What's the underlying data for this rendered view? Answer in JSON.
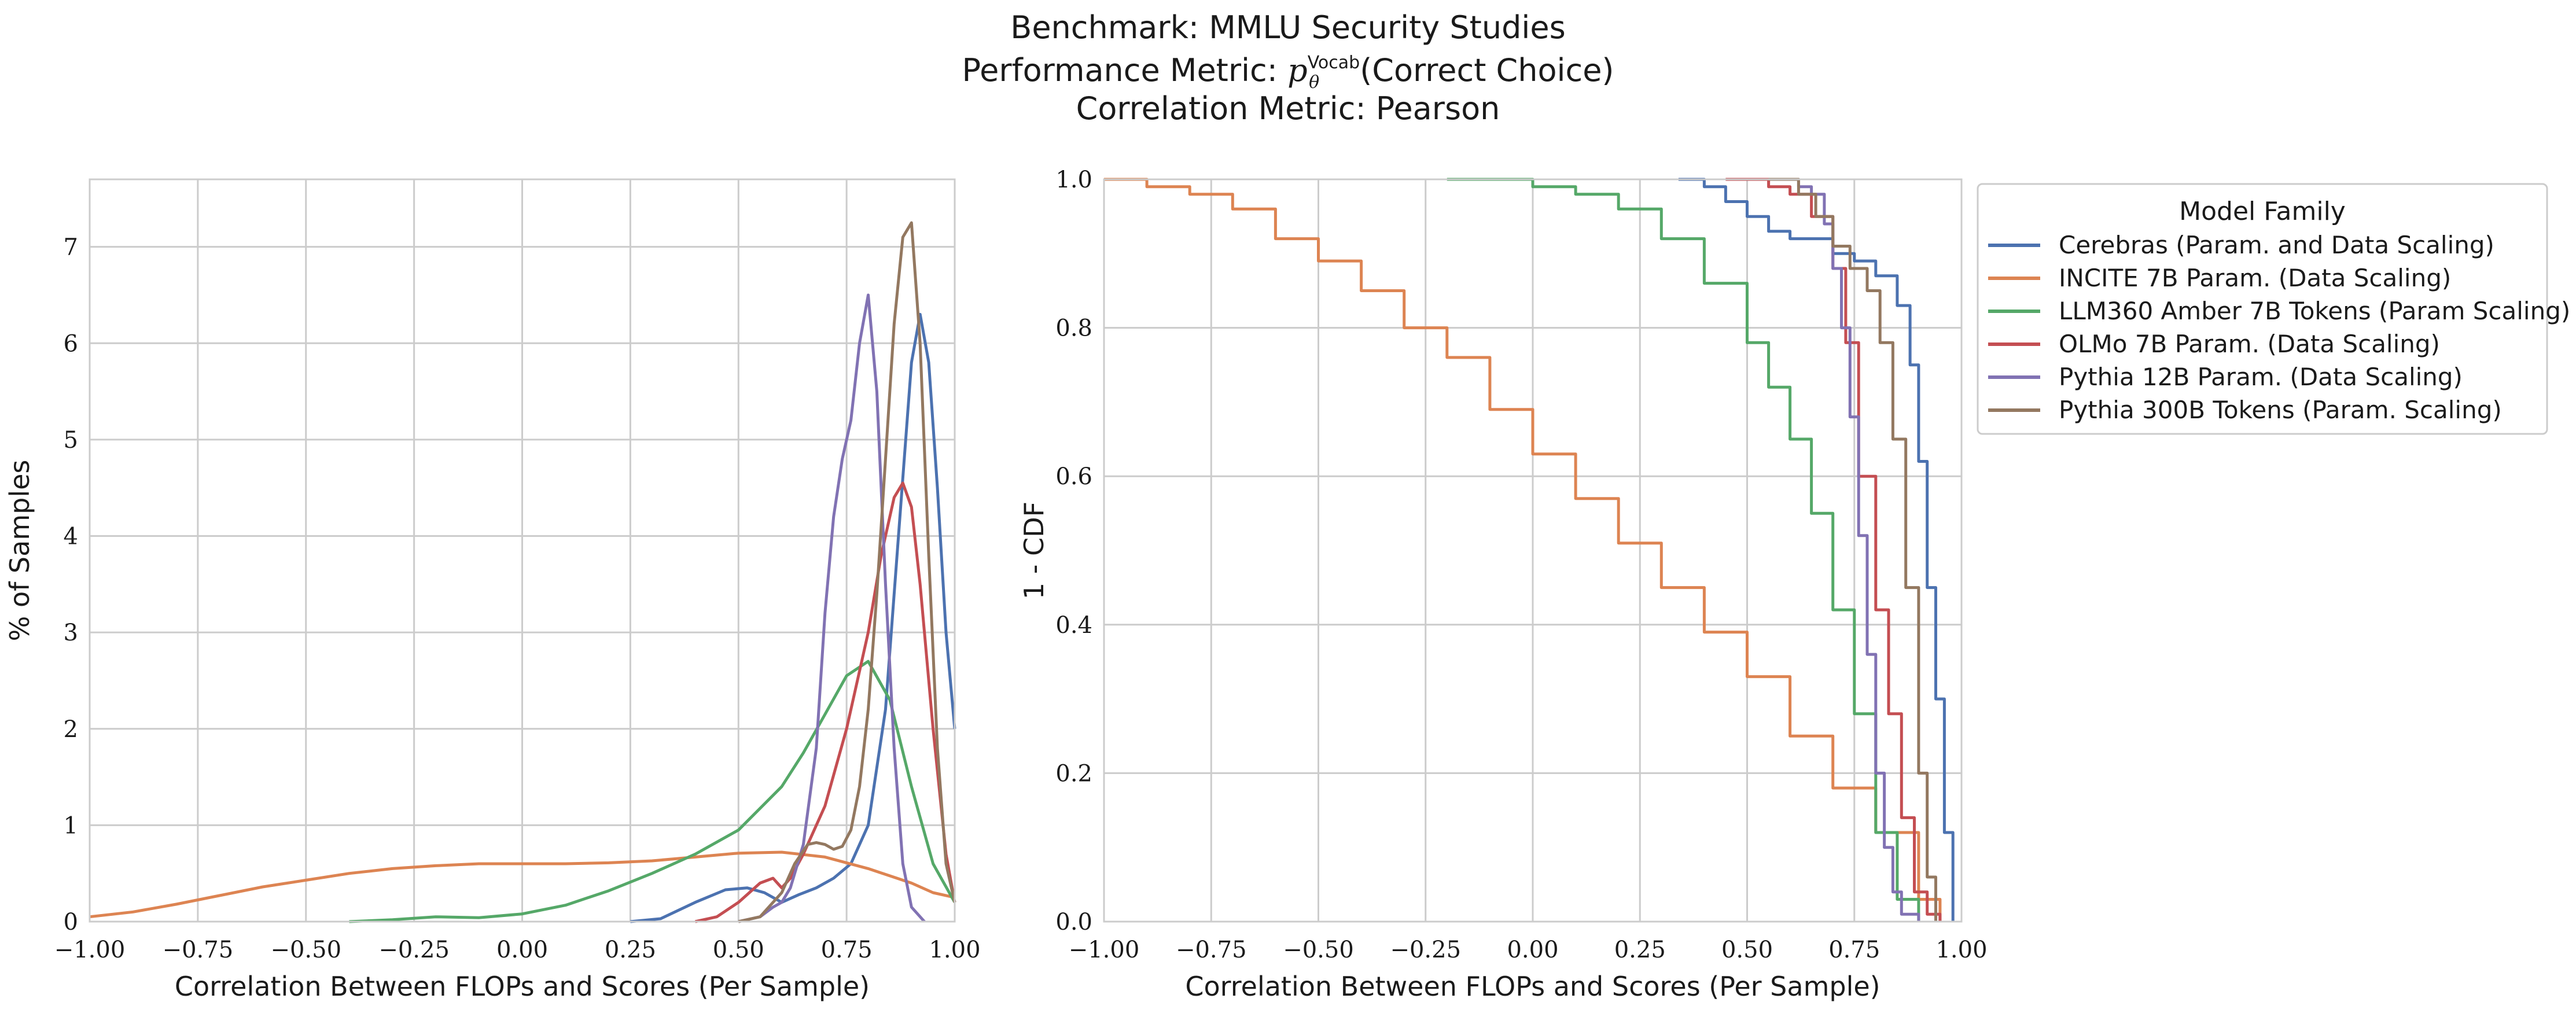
{
  "figure": {
    "title_lines": [
      "Benchmark: MMLU Security Studies",
      "Performance Metric: p_θ^Vocab(Correct Choice)",
      "Correlation Metric: Pearson"
    ],
    "title_line2_parts": {
      "prefix": "Performance Metric: ",
      "symbol": "p",
      "subscript": "θ",
      "superscript": "Vocab",
      "suffix": "(Correct Choice)"
    }
  },
  "colors": {
    "Cerebras (Param. and Data Scaling)": "#4c72b0",
    "INCITE 7B Param. (Data Scaling)": "#dd8452",
    "LLM360 Amber 7B Tokens (Param Scaling)": "#55a868",
    "OLMo 7B Param. (Data Scaling)": "#c44e52",
    "Pythia 12B Param. (Data Scaling)": "#8172b3",
    "Pythia 300B Tokens (Param. Scaling)": "#937860",
    "grid": "#cccccc",
    "axes_edge": "#cccccc"
  },
  "chart_data": [
    {
      "type": "line",
      "subtype": "kde",
      "xlabel": "Correlation Between FLOPs and Scores (Per Sample)",
      "ylabel": "% of Samples",
      "xlim": [
        -1.0,
        1.0
      ],
      "ylim": [
        0,
        7.7
      ],
      "xticks": [
        -1.0,
        -0.75,
        -0.5,
        -0.25,
        0.0,
        0.25,
        0.5,
        0.75,
        1.0
      ],
      "xtick_labels": [
        "−1.00",
        "−0.75",
        "−0.50",
        "−0.25",
        "0.00",
        "0.25",
        "0.50",
        "0.75",
        "1.00"
      ],
      "yticks": [
        0,
        1,
        2,
        3,
        4,
        5,
        6,
        7
      ],
      "ytick_labels": [
        "0",
        "1",
        "2",
        "3",
        "4",
        "5",
        "6",
        "7"
      ],
      "grid": true,
      "series": [
        {
          "name": "Cerebras (Param. and Data Scaling)",
          "x": [
            0.25,
            0.32,
            0.4,
            0.47,
            0.52,
            0.56,
            0.6,
            0.64,
            0.68,
            0.72,
            0.76,
            0.8,
            0.84,
            0.87,
            0.9,
            0.92,
            0.94,
            0.96,
            0.98,
            1.0
          ],
          "y": [
            0.0,
            0.03,
            0.2,
            0.33,
            0.35,
            0.3,
            0.2,
            0.28,
            0.35,
            0.45,
            0.6,
            1.0,
            2.2,
            4.0,
            5.8,
            6.3,
            5.8,
            4.5,
            3.0,
            2.0
          ]
        },
        {
          "name": "INCITE 7B Param. (Data Scaling)",
          "x": [
            -1.0,
            -0.9,
            -0.8,
            -0.7,
            -0.6,
            -0.5,
            -0.4,
            -0.3,
            -0.2,
            -0.1,
            0.0,
            0.1,
            0.2,
            0.3,
            0.4,
            0.5,
            0.6,
            0.7,
            0.8,
            0.9,
            0.95,
            1.0
          ],
          "y": [
            0.05,
            0.1,
            0.18,
            0.27,
            0.36,
            0.43,
            0.5,
            0.55,
            0.58,
            0.6,
            0.6,
            0.6,
            0.61,
            0.63,
            0.67,
            0.71,
            0.72,
            0.67,
            0.55,
            0.4,
            0.3,
            0.25
          ]
        },
        {
          "name": "LLM360 Amber 7B Tokens (Param Scaling)",
          "x": [
            -0.4,
            -0.3,
            -0.2,
            -0.1,
            0.0,
            0.1,
            0.2,
            0.3,
            0.4,
            0.5,
            0.6,
            0.65,
            0.7,
            0.75,
            0.8,
            0.85,
            0.9,
            0.95,
            1.0
          ],
          "y": [
            0.0,
            0.02,
            0.05,
            0.04,
            0.08,
            0.17,
            0.32,
            0.5,
            0.7,
            0.95,
            1.4,
            1.75,
            2.15,
            2.55,
            2.7,
            2.3,
            1.4,
            0.6,
            0.2
          ]
        },
        {
          "name": "OLMo 7B Param. (Data Scaling)",
          "x": [
            0.4,
            0.45,
            0.5,
            0.55,
            0.58,
            0.6,
            0.62,
            0.65,
            0.7,
            0.75,
            0.8,
            0.83,
            0.86,
            0.88,
            0.9,
            0.92,
            0.95,
            0.98,
            1.0
          ],
          "y": [
            0.0,
            0.05,
            0.2,
            0.4,
            0.45,
            0.35,
            0.45,
            0.7,
            1.2,
            2.0,
            3.0,
            3.8,
            4.4,
            4.55,
            4.3,
            3.5,
            2.0,
            0.7,
            0.2
          ]
        },
        {
          "name": "Pythia 12B Param. (Data Scaling)",
          "x": [
            0.5,
            0.55,
            0.58,
            0.6,
            0.62,
            0.65,
            0.68,
            0.7,
            0.72,
            0.74,
            0.76,
            0.78,
            0.8,
            0.82,
            0.84,
            0.86,
            0.88,
            0.9,
            0.93
          ],
          "y": [
            0.0,
            0.05,
            0.15,
            0.2,
            0.35,
            0.8,
            1.8,
            3.2,
            4.2,
            4.8,
            5.2,
            6.0,
            6.5,
            5.5,
            3.5,
            1.8,
            0.6,
            0.15,
            0.0
          ]
        },
        {
          "name": "Pythia 300B Tokens (Param. Scaling)",
          "x": [
            0.5,
            0.55,
            0.6,
            0.63,
            0.66,
            0.68,
            0.7,
            0.72,
            0.74,
            0.76,
            0.78,
            0.8,
            0.82,
            0.84,
            0.86,
            0.88,
            0.9,
            0.92,
            0.94,
            0.96,
            0.98,
            1.0
          ],
          "y": [
            0.0,
            0.05,
            0.3,
            0.6,
            0.8,
            0.82,
            0.8,
            0.75,
            0.78,
            0.95,
            1.4,
            2.2,
            3.4,
            4.8,
            6.2,
            7.1,
            7.25,
            6.0,
            3.8,
            1.8,
            0.6,
            0.2
          ]
        }
      ]
    },
    {
      "type": "line",
      "subtype": "step",
      "xlabel": "Correlation Between FLOPs and Scores (Per Sample)",
      "ylabel": "1 - CDF",
      "xlim": [
        -1.0,
        1.0
      ],
      "ylim": [
        0.0,
        1.0
      ],
      "xticks": [
        -1.0,
        -0.75,
        -0.5,
        -0.25,
        0.0,
        0.25,
        0.5,
        0.75,
        1.0
      ],
      "xtick_labels": [
        "−1.00",
        "−0.75",
        "−0.50",
        "−0.25",
        "0.00",
        "0.25",
        "0.50",
        "0.75",
        "1.00"
      ],
      "yticks": [
        0.0,
        0.2,
        0.4,
        0.6,
        0.8,
        1.0
      ],
      "ytick_labels": [
        "0.0",
        "0.2",
        "0.4",
        "0.6",
        "0.8",
        "1.0"
      ],
      "grid": true,
      "legend": {
        "title": "Model Family",
        "placement": "outside-right"
      },
      "series": [
        {
          "name": "Cerebras (Param. and Data Scaling)",
          "x": [
            0.34,
            0.4,
            0.45,
            0.5,
            0.55,
            0.6,
            0.65,
            0.7,
            0.75,
            0.8,
            0.85,
            0.88,
            0.9,
            0.92,
            0.94,
            0.96,
            0.98
          ],
          "y": [
            1.0,
            0.99,
            0.97,
            0.95,
            0.93,
            0.92,
            0.92,
            0.9,
            0.89,
            0.87,
            0.83,
            0.75,
            0.62,
            0.45,
            0.3,
            0.12,
            0.0
          ]
        },
        {
          "name": "INCITE 7B Param. (Data Scaling)",
          "x": [
            -1.0,
            -0.9,
            -0.8,
            -0.7,
            -0.6,
            -0.5,
            -0.4,
            -0.3,
            -0.2,
            -0.1,
            0.0,
            0.1,
            0.2,
            0.3,
            0.4,
            0.5,
            0.6,
            0.7,
            0.8,
            0.9,
            0.95
          ],
          "y": [
            1.0,
            0.99,
            0.98,
            0.96,
            0.92,
            0.89,
            0.85,
            0.8,
            0.76,
            0.69,
            0.63,
            0.57,
            0.51,
            0.45,
            0.39,
            0.33,
            0.25,
            0.18,
            0.12,
            0.03,
            0.0
          ]
        },
        {
          "name": "LLM360 Amber 7B Tokens (Param Scaling)",
          "x": [
            -0.2,
            -0.1,
            0.0,
            0.1,
            0.2,
            0.3,
            0.4,
            0.5,
            0.55,
            0.6,
            0.65,
            0.7,
            0.75,
            0.8,
            0.85,
            0.9
          ],
          "y": [
            1.0,
            1.0,
            0.99,
            0.98,
            0.96,
            0.92,
            0.86,
            0.78,
            0.72,
            0.65,
            0.55,
            0.42,
            0.28,
            0.12,
            0.03,
            0.0
          ]
        },
        {
          "name": "OLMo 7B Param. (Data Scaling)",
          "x": [
            0.45,
            0.55,
            0.6,
            0.65,
            0.7,
            0.73,
            0.76,
            0.8,
            0.83,
            0.86,
            0.89,
            0.92,
            0.95
          ],
          "y": [
            1.0,
            0.99,
            0.98,
            0.95,
            0.88,
            0.78,
            0.6,
            0.42,
            0.28,
            0.14,
            0.04,
            0.01,
            0.0
          ]
        },
        {
          "name": "Pythia 12B Param. (Data Scaling)",
          "x": [
            0.55,
            0.62,
            0.65,
            0.68,
            0.7,
            0.72,
            0.74,
            0.76,
            0.78,
            0.8,
            0.82,
            0.84,
            0.86,
            0.9
          ],
          "y": [
            1.0,
            0.99,
            0.98,
            0.94,
            0.88,
            0.8,
            0.68,
            0.52,
            0.36,
            0.2,
            0.1,
            0.04,
            0.01,
            0.0
          ]
        },
        {
          "name": "Pythia 300B Tokens (Param. Scaling)",
          "x": [
            0.55,
            0.62,
            0.66,
            0.7,
            0.74,
            0.78,
            0.81,
            0.84,
            0.87,
            0.9,
            0.92,
            0.94
          ],
          "y": [
            1.0,
            0.98,
            0.95,
            0.91,
            0.88,
            0.85,
            0.78,
            0.65,
            0.45,
            0.2,
            0.06,
            0.0
          ]
        }
      ]
    }
  ]
}
